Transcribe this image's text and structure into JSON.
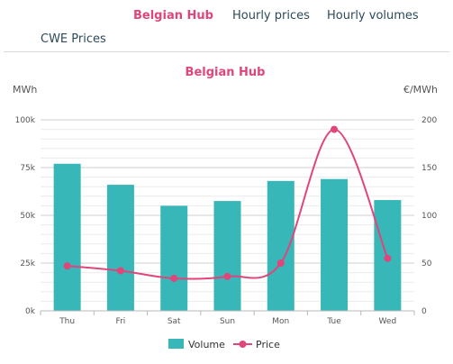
{
  "tabs": {
    "belgian_hub": "Belgian Hub",
    "hourly_prices": "Hourly prices",
    "hourly_volumes": "Hourly volumes",
    "cwe_prices": "CWE Prices"
  },
  "colors": {
    "accent": "#e0457b",
    "volume_bar": "#37b7b8",
    "price_line": "#e0457b",
    "tab_text": "#2d4a5a"
  },
  "chart_data": {
    "type": "bar",
    "title": "Belgian Hub",
    "ylabel_left": "MWh",
    "ylabel_right": "€/MWh",
    "categories": [
      "Thu",
      "Fri",
      "Sat",
      "Sun",
      "Mon",
      "Tue",
      "Wed"
    ],
    "y_left": {
      "min": 0,
      "max": 100000,
      "ticks": [
        0,
        25000,
        50000,
        75000,
        100000
      ],
      "tick_labels": [
        "0k",
        "25k",
        "50k",
        "75k",
        "100k"
      ]
    },
    "y_right": {
      "min": 0,
      "max": 200,
      "ticks": [
        0,
        50,
        100,
        150,
        200
      ],
      "tick_labels": [
        "0",
        "50",
        "100",
        "150",
        "200"
      ]
    },
    "series": [
      {
        "name": "Volume",
        "type": "bar",
        "axis": "left",
        "values": [
          77000,
          66000,
          55000,
          57500,
          68000,
          69000,
          58000
        ]
      },
      {
        "name": "Price",
        "type": "line",
        "axis": "right",
        "values": [
          47,
          42,
          34,
          36,
          50,
          190,
          55
        ]
      }
    ],
    "grid": true,
    "legend_position": "bottom"
  }
}
